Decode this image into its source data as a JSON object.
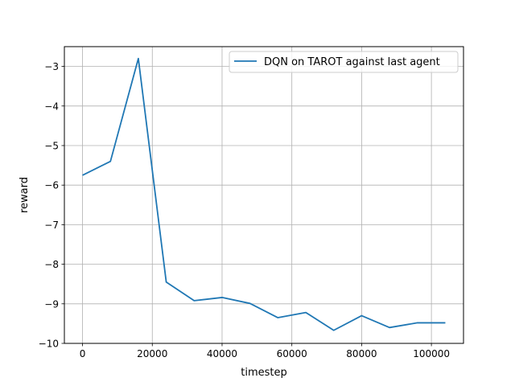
{
  "chart_data": {
    "type": "line",
    "title": "",
    "xlabel": "timestep",
    "ylabel": "reward",
    "xlim": [
      -5200,
      109200
    ],
    "ylim": [
      -10,
      -2.5
    ],
    "grid": true,
    "legend_position": "top-right",
    "x_ticks": [
      0,
      20000,
      40000,
      60000,
      80000,
      100000
    ],
    "x_tick_labels": [
      "0",
      "20000",
      "40000",
      "60000",
      "80000",
      "100000"
    ],
    "y_ticks": [
      -10,
      -9,
      -8,
      -7,
      -6,
      -5,
      -4,
      -3
    ],
    "y_tick_labels": [
      "−10",
      "−9",
      "−8",
      "−7",
      "−6",
      "−5",
      "−4",
      "−3"
    ],
    "series": [
      {
        "name": "DQN on TAROT against last agent",
        "color": "#1f77b4",
        "x": [
          0,
          8000,
          16000,
          24000,
          32000,
          40000,
          48000,
          56000,
          64000,
          72000,
          80000,
          88000,
          96000,
          104000
        ],
        "y": [
          -5.75,
          -5.4,
          -2.8,
          -8.45,
          -8.92,
          -8.84,
          -8.99,
          -9.35,
          -9.22,
          -9.67,
          -9.3,
          -9.6,
          -9.48,
          -9.48
        ]
      }
    ]
  }
}
